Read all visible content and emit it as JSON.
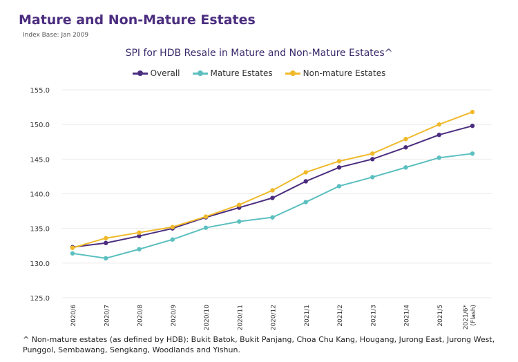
{
  "header": {
    "title": "Mature and Non-Mature Estates",
    "subtitle": "Index Base: Jan 2009"
  },
  "chart_data": {
    "type": "line",
    "title": "SPI for HDB Resale in Mature and Non-Mature Estates^",
    "categories": [
      "2020/6",
      "2020/7",
      "2020/8",
      "2020/9",
      "2020/10",
      "2020/11",
      "2020/12",
      "2021/1",
      "2021/2",
      "2021/3",
      "2021/4",
      "2021/5",
      "2021/6* (Flash)"
    ],
    "ylim": [
      125,
      155
    ],
    "yticks": [
      "125.0",
      "130.0",
      "135.0",
      "140.0",
      "145.0",
      "150.0",
      "155.0"
    ],
    "grid": true,
    "legend_position": "top",
    "series": [
      {
        "name": "Overall",
        "color": "#4b2d7f",
        "values": [
          132.3,
          132.9,
          133.9,
          135.0,
          136.6,
          138.0,
          139.4,
          141.8,
          143.8,
          145.0,
          146.7,
          148.5,
          149.8
        ]
      },
      {
        "name": "Mature Estates",
        "color": "#5bbfbf",
        "values": [
          131.4,
          130.7,
          132.0,
          133.4,
          135.1,
          136.0,
          136.6,
          138.8,
          141.1,
          142.4,
          143.8,
          145.2,
          145.8
        ]
      },
      {
        "name": "Non-mature Estates",
        "color": "#f0b929",
        "values": [
          132.2,
          133.6,
          134.4,
          135.2,
          136.7,
          138.4,
          140.5,
          143.1,
          144.7,
          145.8,
          147.9,
          150.0,
          151.8
        ]
      }
    ]
  },
  "footnote": "^ Non-mature estates (as defined by HDB): Bukit Batok, Bukit Panjang, Choa Chu Kang, Hougang, Jurong East, Jurong West, Punggol, Sembawang, Sengkang, Woodlands and Yishun."
}
